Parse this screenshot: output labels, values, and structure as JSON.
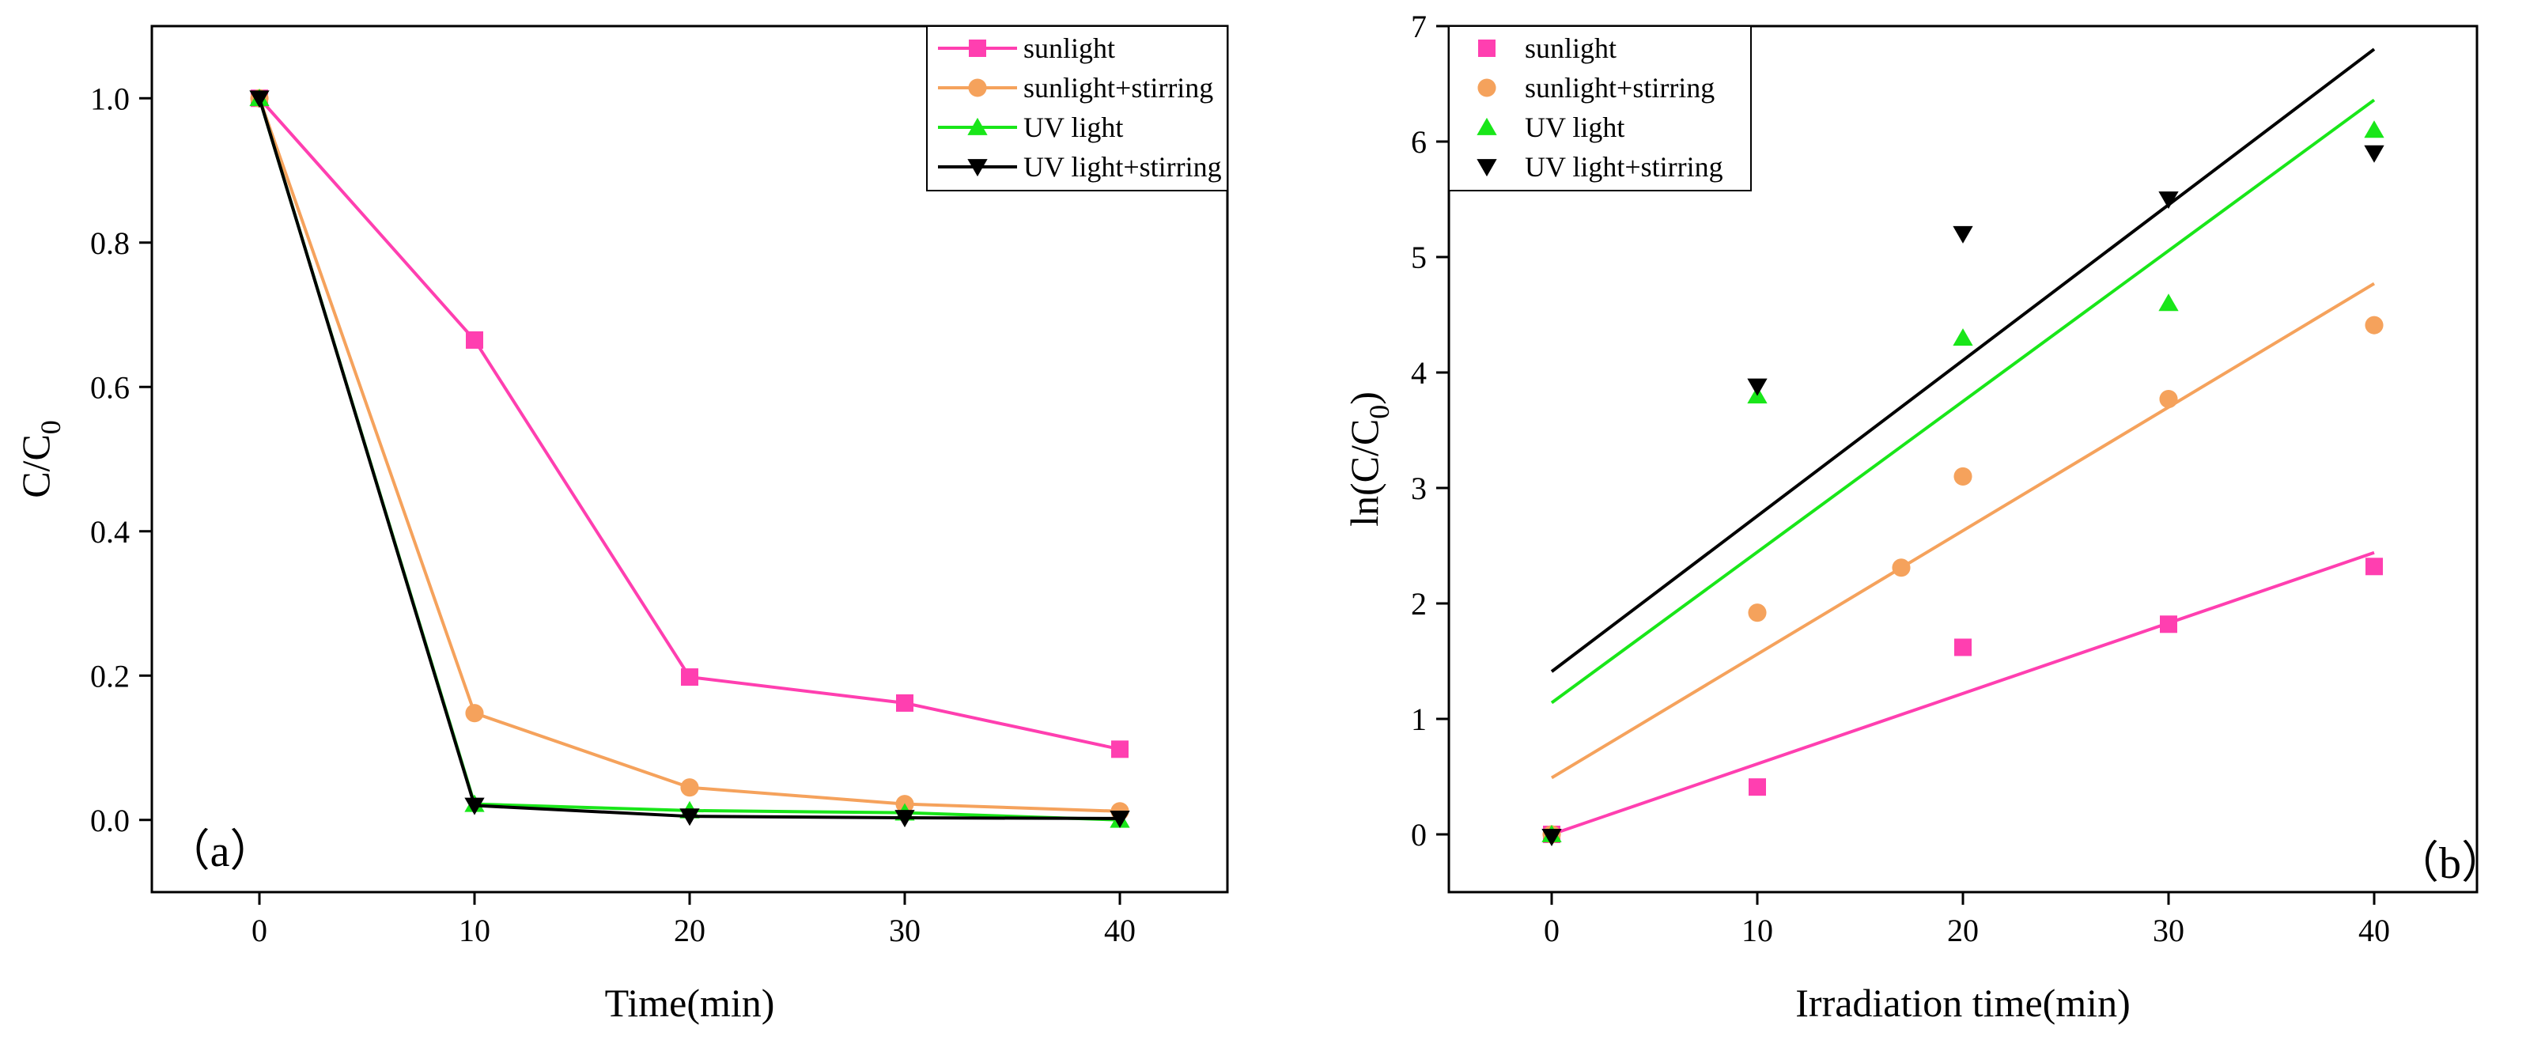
{
  "chart_data": [
    {
      "type": "line",
      "panel_label": "（a）",
      "title": "",
      "xlabel": "Time(min)",
      "ylabel": "C/C",
      "ylabel_subscript": "0",
      "xlim": [
        -5,
        45
      ],
      "ylim": [
        -0.1,
        1.1
      ],
      "xticks": [
        0,
        10,
        20,
        30,
        40
      ],
      "yticks": [
        0.0,
        0.2,
        0.4,
        0.6,
        0.8,
        1.0
      ],
      "xtick_labels": [
        "0",
        "10",
        "20",
        "30",
        "40"
      ],
      "ytick_labels": [
        "0.0",
        "0.2",
        "0.4",
        "0.6",
        "0.8",
        "1.0"
      ],
      "legend_position": "top-right",
      "series": [
        {
          "name": "sunlight",
          "color": "#ff3fb0",
          "marker": "square",
          "x": [
            0,
            10,
            20,
            30,
            40
          ],
          "y": [
            1.0,
            0.665,
            0.198,
            0.162,
            0.098
          ]
        },
        {
          "name": "sunlight+stirring",
          "color": "#f5a25c",
          "marker": "circle",
          "x": [
            0,
            10,
            20,
            30,
            40
          ],
          "y": [
            1.0,
            0.148,
            0.045,
            0.022,
            0.012
          ]
        },
        {
          "name": "UV light",
          "color": "#19e619",
          "marker": "triangle-up",
          "x": [
            0,
            10,
            20,
            30,
            40
          ],
          "y": [
            1.0,
            0.022,
            0.013,
            0.01,
            0.0
          ]
        },
        {
          "name": "UV light+stirring",
          "color": "#000000",
          "marker": "triangle-down",
          "x": [
            0,
            10,
            20,
            30,
            40
          ],
          "y": [
            1.0,
            0.02,
            0.005,
            0.003,
            0.002
          ]
        }
      ]
    },
    {
      "type": "scatter",
      "panel_label": "（b）",
      "title": "",
      "xlabel": "Irradiation time(min)",
      "ylabel": "ln(C/C",
      "ylabel_subscript": "0",
      "ylabel_suffix": ")",
      "xlim": [
        -5,
        45
      ],
      "ylim": [
        -0.5,
        7
      ],
      "xticks": [
        0,
        10,
        20,
        30,
        40
      ],
      "yticks": [
        0,
        1,
        2,
        3,
        4,
        5,
        6,
        7
      ],
      "xtick_labels": [
        "0",
        "10",
        "20",
        "30",
        "40"
      ],
      "ytick_labels": [
        "0",
        "1",
        "2",
        "3",
        "4",
        "5",
        "6",
        "7"
      ],
      "legend_position": "top-left",
      "series": [
        {
          "name": "sunlight",
          "color": "#ff3fb0",
          "marker": "square",
          "x": [
            0,
            10,
            20,
            30,
            40
          ],
          "y": [
            0,
            0.41,
            1.62,
            1.82,
            2.32
          ],
          "fit": {
            "x": [
              0,
              40
            ],
            "y": [
              0.0,
              2.44
            ]
          }
        },
        {
          "name": "sunlight+stirring",
          "color": "#f5a25c",
          "marker": "circle",
          "x": [
            0,
            10,
            17,
            20,
            30,
            40
          ],
          "y": [
            0,
            1.92,
            2.31,
            3.1,
            3.77,
            4.41
          ],
          "fit": {
            "x": [
              0,
              40
            ],
            "y": [
              0.49,
              4.77
            ]
          }
        },
        {
          "name": "UV light",
          "color": "#19e619",
          "marker": "triangle-up",
          "x": [
            0,
            10,
            20,
            30,
            40
          ],
          "y": [
            0,
            3.8,
            4.3,
            4.6,
            6.1
          ],
          "fit": {
            "x": [
              0,
              40
            ],
            "y": [
              1.14,
              6.36
            ]
          }
        },
        {
          "name": "UV light+stirring",
          "color": "#000000",
          "marker": "triangle-down",
          "x": [
            0,
            10,
            20,
            30,
            40
          ],
          "y": [
            -0.02,
            3.88,
            5.2,
            5.5,
            5.9
          ],
          "fit": {
            "x": [
              0,
              40
            ],
            "y": [
              1.41,
              6.8
            ]
          }
        }
      ]
    }
  ]
}
